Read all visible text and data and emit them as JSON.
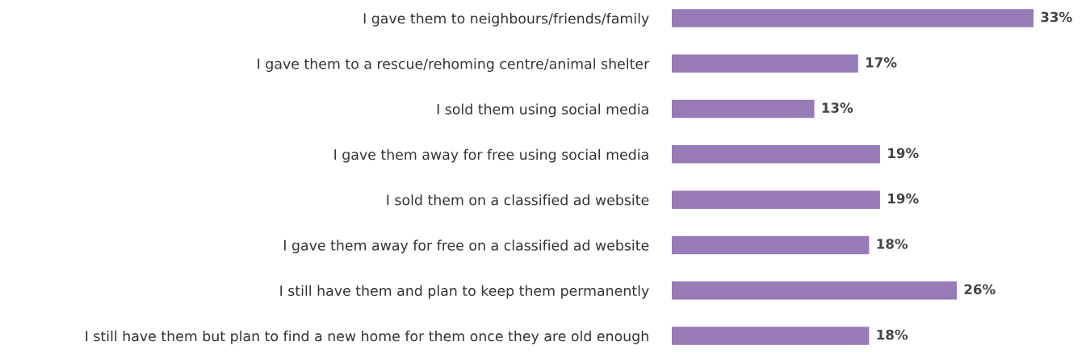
{
  "chart_data": {
    "type": "bar",
    "orientation": "horizontal",
    "categories": [
      "I gave them to neighbours/friends/family",
      "I gave them to a rescue/rehoming centre/animal shelter",
      "I sold them using social media",
      "I gave them away for free using social media",
      "I sold them on a classified ad website",
      "I gave them away for free on a classified ad website",
      "I still have them and plan to keep them permanently",
      "I still have them but plan to find a new home for them once they are old enough"
    ],
    "values": [
      33,
      17,
      13,
      19,
      19,
      18,
      26,
      18
    ],
    "value_labels": [
      "33%",
      "17%",
      "13%",
      "19%",
      "19%",
      "18%",
      "26%",
      "18%"
    ],
    "color": "#977bb7",
    "grid": false,
    "legend": false
  }
}
